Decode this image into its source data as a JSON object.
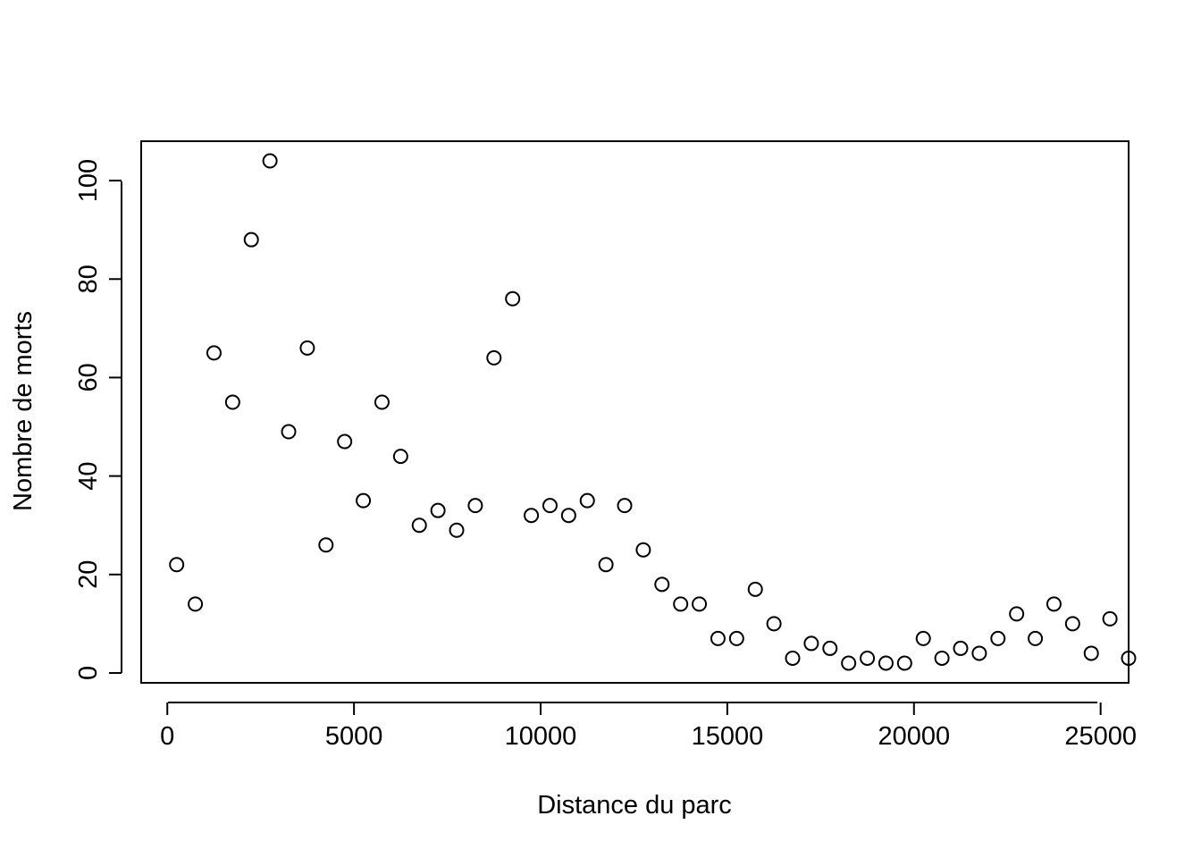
{
  "chart_data": {
    "type": "scatter",
    "title": "",
    "xlabel": "Distance du parc",
    "ylabel": "Nombre de morts",
    "xlim": [
      -700,
      25750
    ],
    "ylim": [
      -2,
      108
    ],
    "x_ticks": [
      0,
      5000,
      10000,
      15000,
      20000,
      25000
    ],
    "x_tick_labels": [
      "0",
      "5000",
      "10000",
      "15000",
      "20000",
      "25000"
    ],
    "y_ticks": [
      0,
      20,
      40,
      60,
      80,
      100
    ],
    "y_tick_labels": [
      "0",
      "20",
      "40",
      "60",
      "80",
      "100"
    ],
    "grid": false,
    "marker": "open-circle",
    "marker_color": "#000000",
    "points": [
      {
        "x": 250,
        "y": 22
      },
      {
        "x": 750,
        "y": 14
      },
      {
        "x": 1250,
        "y": 65
      },
      {
        "x": 1750,
        "y": 55
      },
      {
        "x": 2250,
        "y": 88
      },
      {
        "x": 2750,
        "y": 104
      },
      {
        "x": 3250,
        "y": 49
      },
      {
        "x": 3750,
        "y": 66
      },
      {
        "x": 4250,
        "y": 26
      },
      {
        "x": 4750,
        "y": 47
      },
      {
        "x": 5250,
        "y": 35
      },
      {
        "x": 5750,
        "y": 55
      },
      {
        "x": 6250,
        "y": 44
      },
      {
        "x": 6750,
        "y": 30
      },
      {
        "x": 7250,
        "y": 33
      },
      {
        "x": 7750,
        "y": 29
      },
      {
        "x": 8250,
        "y": 34
      },
      {
        "x": 8750,
        "y": 64
      },
      {
        "x": 9250,
        "y": 76
      },
      {
        "x": 9750,
        "y": 32
      },
      {
        "x": 10250,
        "y": 34
      },
      {
        "x": 10750,
        "y": 32
      },
      {
        "x": 11250,
        "y": 35
      },
      {
        "x": 11750,
        "y": 22
      },
      {
        "x": 12250,
        "y": 34
      },
      {
        "x": 12750,
        "y": 25
      },
      {
        "x": 13250,
        "y": 18
      },
      {
        "x": 13750,
        "y": 14
      },
      {
        "x": 14250,
        "y": 14
      },
      {
        "x": 14750,
        "y": 7
      },
      {
        "x": 15250,
        "y": 7
      },
      {
        "x": 15750,
        "y": 17
      },
      {
        "x": 16250,
        "y": 10
      },
      {
        "x": 16750,
        "y": 3
      },
      {
        "x": 17250,
        "y": 6
      },
      {
        "x": 17750,
        "y": 5
      },
      {
        "x": 18250,
        "y": 2
      },
      {
        "x": 18750,
        "y": 3
      },
      {
        "x": 19250,
        "y": 2
      },
      {
        "x": 19750,
        "y": 2
      },
      {
        "x": 20250,
        "y": 7
      },
      {
        "x": 20750,
        "y": 3
      },
      {
        "x": 21250,
        "y": 5
      },
      {
        "x": 21750,
        "y": 4
      },
      {
        "x": 22250,
        "y": 7
      },
      {
        "x": 22750,
        "y": 12
      },
      {
        "x": 23250,
        "y": 7
      },
      {
        "x": 23750,
        "y": 14
      },
      {
        "x": 24250,
        "y": 10
      },
      {
        "x": 24750,
        "y": 4
      },
      {
        "x": 25250,
        "y": 11
      },
      {
        "x": 25750,
        "y": 3
      }
    ]
  }
}
